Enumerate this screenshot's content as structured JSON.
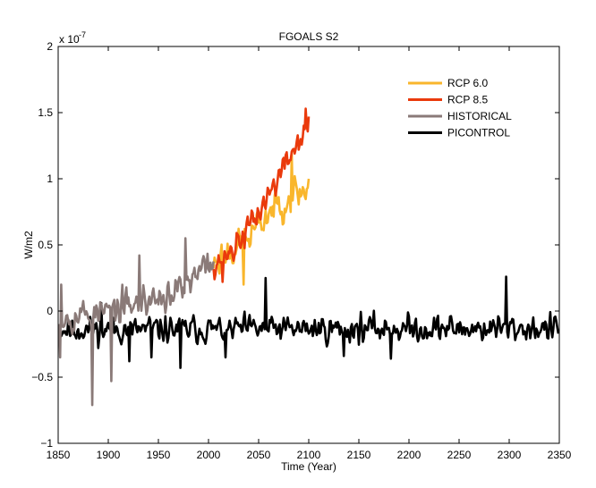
{
  "chart_data": {
    "type": "line",
    "title": "FGOALS S2",
    "xlabel": "Time (Year)",
    "ylabel": "W/m2",
    "y_exponent_label": "x 10",
    "y_exponent_power": "-7",
    "xlim": [
      1850,
      2350
    ],
    "ylim": [
      -1,
      2
    ],
    "x_ticks": [
      1850,
      1900,
      1950,
      2000,
      2050,
      2100,
      2150,
      2200,
      2250,
      2300,
      2350
    ],
    "x_tick_labels": [
      "1850",
      "1900",
      "1950",
      "2000",
      "2050",
      "2100",
      "2150",
      "2200",
      "2250",
      "2300",
      "2350"
    ],
    "y_ticks": [
      -1,
      -0.5,
      0,
      0.5,
      1,
      1.5,
      2
    ],
    "y_tick_labels": [
      "−1",
      "−0.5",
      "0",
      "0.5",
      "1",
      "1.5",
      "2"
    ],
    "legend_position": "top-right",
    "series": [
      {
        "name": "PICONTROL",
        "color": "#000000",
        "draw_order": 1,
        "x_start": 1850,
        "x_end": 2349,
        "step": 1,
        "trend": [
          [
            1850,
            -0.14
          ],
          [
            2350,
            -0.13
          ]
        ],
        "noise": 0.075,
        "seed": 11,
        "extremes": [
          [
            1893,
            0.06
          ],
          [
            1921,
            -0.38
          ],
          [
            1943,
            -0.35
          ],
          [
            1972,
            -0.43
          ],
          [
            2017,
            -0.35
          ],
          [
            2057,
            0.25
          ],
          [
            2135,
            -0.34
          ],
          [
            2182,
            -0.36
          ],
          [
            2297,
            0.26
          ]
        ]
      },
      {
        "name": "RCP 6.0",
        "color": "#f9b62c",
        "draw_order": 2,
        "x_start": 2005,
        "x_end": 2100,
        "step": 1,
        "trend": [
          [
            2005,
            0.36
          ],
          [
            2020,
            0.45
          ],
          [
            2040,
            0.55
          ],
          [
            2060,
            0.74
          ],
          [
            2080,
            0.87
          ],
          [
            2100,
            0.92
          ]
        ],
        "noise": 0.1,
        "seed": 23,
        "extremes": [
          [
            2035,
            0.2
          ],
          [
            2083,
            1.2
          ],
          [
            2100,
            1.0
          ]
        ]
      },
      {
        "name": "RCP 8.5",
        "color": "#ea3a0c",
        "draw_order": 3,
        "x_start": 2005,
        "x_end": 2100,
        "step": 1,
        "trend": [
          [
            2005,
            0.36
          ],
          [
            2025,
            0.47
          ],
          [
            2045,
            0.68
          ],
          [
            2065,
            0.95
          ],
          [
            2085,
            1.22
          ],
          [
            2100,
            1.42
          ]
        ],
        "noise": 0.08,
        "seed": 37,
        "extremes": [
          [
            2014,
            0.22
          ],
          [
            2097,
            1.53
          ],
          [
            2100,
            1.47
          ]
        ]
      },
      {
        "name": "HISTORICAL",
        "color": "#8a7a78",
        "draw_order": 4,
        "x_start": 1850,
        "x_end": 2005,
        "step": 1,
        "trend": [
          [
            1850,
            -0.05
          ],
          [
            1900,
            0.0
          ],
          [
            1950,
            0.1
          ],
          [
            1980,
            0.18
          ],
          [
            2005,
            0.4
          ]
        ],
        "noise": 0.09,
        "seed": 53,
        "extremes": [
          [
            1852,
            -0.35
          ],
          [
            1853,
            0.2
          ],
          [
            1884,
            -0.71
          ],
          [
            1903,
            -0.53
          ],
          [
            1931,
            0.42
          ],
          [
            1977,
            0.55
          ]
        ]
      }
    ]
  }
}
